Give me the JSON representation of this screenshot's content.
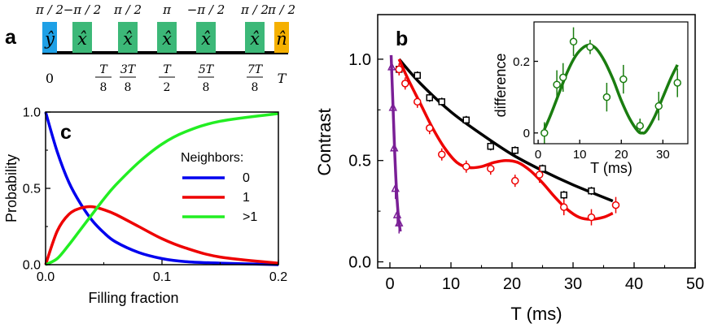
{
  "colors": {
    "pulse_y": "#1ea0e6",
    "pulse_x": "#3cb878",
    "pulse_n": "#f5b000",
    "blue": "#0000ee",
    "red": "#ee0000",
    "green": "#22ee22",
    "black": "#000000",
    "purple": "#7a1f96",
    "darkgreen": "#1a7d10"
  },
  "panel_a": {
    "letter": "a",
    "pulses": [
      {
        "phase": "π / 2",
        "axis": "ŷ",
        "kind": "y"
      },
      {
        "phase": "−π / 2",
        "axis": "x̂",
        "kind": "x"
      },
      {
        "phase": "π / 2",
        "axis": "x̂",
        "kind": "x"
      },
      {
        "phase": "π",
        "axis": "x̂",
        "kind": "x"
      },
      {
        "phase": "−π / 2",
        "axis": "x̂",
        "kind": "x"
      },
      {
        "phase": "π / 2",
        "axis": "x̂",
        "kind": "x"
      },
      {
        "phase": "π / 2",
        "axis": "n̂",
        "kind": "n"
      }
    ],
    "time_labels": [
      {
        "num": "0",
        "den": ""
      },
      {
        "num": "T",
        "den": "8"
      },
      {
        "num": "3T",
        "den": "8"
      },
      {
        "num": "T",
        "den": "2"
      },
      {
        "num": "5T",
        "den": "8"
      },
      {
        "num": "7T",
        "den": "8"
      },
      {
        "num": "T",
        "den": ""
      }
    ]
  },
  "chart_data": [
    {
      "id": "c",
      "letter": "c",
      "type": "line",
      "xlabel": "Filling fraction",
      "ylabel": "Probability",
      "xlim": [
        0,
        0.2
      ],
      "ylim": [
        0,
        1.0
      ],
      "xticks": [
        "0.0",
        "0.1",
        "0.2"
      ],
      "yticks": [
        "0.0",
        "0.5",
        "1.0"
      ],
      "legend_title": "Neighbors:",
      "legend_position": "right",
      "series": [
        {
          "name": "0",
          "color_key": "blue",
          "x": [
            0,
            0.01,
            0.02,
            0.03,
            0.04,
            0.05,
            0.06,
            0.08,
            0.1,
            0.12,
            0.15,
            0.2
          ],
          "values": [
            1.0,
            0.74,
            0.54,
            0.4,
            0.29,
            0.21,
            0.15,
            0.08,
            0.04,
            0.02,
            0.01,
            0.0
          ]
        },
        {
          "name": "1",
          "color_key": "red",
          "x": [
            0,
            0.01,
            0.02,
            0.03,
            0.04,
            0.05,
            0.06,
            0.08,
            0.1,
            0.12,
            0.15,
            0.2
          ],
          "values": [
            0.0,
            0.22,
            0.33,
            0.37,
            0.38,
            0.36,
            0.33,
            0.25,
            0.17,
            0.11,
            0.05,
            0.01
          ]
        },
        {
          "name": ">1",
          "color_key": "green",
          "x": [
            0,
            0.01,
            0.02,
            0.03,
            0.04,
            0.05,
            0.06,
            0.08,
            0.1,
            0.12,
            0.15,
            0.2
          ],
          "values": [
            0.0,
            0.04,
            0.13,
            0.23,
            0.33,
            0.43,
            0.52,
            0.67,
            0.79,
            0.87,
            0.94,
            0.99
          ]
        }
      ]
    },
    {
      "id": "b",
      "letter": "b",
      "type": "scatter",
      "xlabel": "T (ms)",
      "ylabel": "Contrast",
      "xlim": [
        -2,
        50
      ],
      "ylim": [
        -0.03,
        1.22
      ],
      "xticks": [
        "0",
        "10",
        "20",
        "30",
        "40",
        "50"
      ],
      "yticks": [
        "0.0",
        "0.5",
        "1.0"
      ],
      "series": [
        {
          "name": "black squares",
          "color_key": "black",
          "marker": "square",
          "x": [
            1.5,
            4.5,
            6.5,
            8.5,
            12.5,
            16.5,
            20.5,
            25,
            28.5,
            33
          ],
          "values": [
            0.95,
            0.92,
            0.81,
            0.79,
            0.7,
            0.57,
            0.55,
            0.46,
            0.33,
            0.35
          ],
          "errors": [
            0.02,
            0.02,
            0.02,
            0.02,
            0.02,
            0.02,
            0.02,
            0.02,
            0.02,
            0.02
          ],
          "fit_x": [
            1.5,
            5,
            10,
            15,
            20,
            25,
            30,
            36.5
          ],
          "fit_y": [
            1.0,
            0.88,
            0.74,
            0.63,
            0.53,
            0.45,
            0.38,
            0.3
          ]
        },
        {
          "name": "red circles",
          "color_key": "red",
          "marker": "circle",
          "x": [
            1.5,
            2.5,
            4.5,
            6.5,
            8.5,
            12.5,
            16.5,
            20.5,
            24.5,
            28.5,
            33,
            37
          ],
          "values": [
            0.95,
            0.88,
            0.79,
            0.66,
            0.53,
            0.47,
            0.46,
            0.4,
            0.43,
            0.27,
            0.22,
            0.28
          ],
          "errors": [
            0.03,
            0.03,
            0.03,
            0.03,
            0.03,
            0.03,
            0.03,
            0.03,
            0.04,
            0.04,
            0.04,
            0.04
          ],
          "fit_x": [
            1.5,
            3,
            5,
            7,
            9,
            11,
            13,
            15,
            17,
            19,
            21,
            23,
            25,
            27,
            29,
            31,
            33,
            35,
            36.5
          ],
          "fit_y": [
            1.0,
            0.9,
            0.78,
            0.66,
            0.56,
            0.49,
            0.465,
            0.47,
            0.49,
            0.5,
            0.49,
            0.45,
            0.39,
            0.32,
            0.26,
            0.22,
            0.21,
            0.22,
            0.24
          ]
        },
        {
          "name": "purple triangles",
          "color_key": "purple",
          "marker": "triangle",
          "x": [
            0.3,
            0.5,
            0.7,
            0.9,
            1.2,
            1.5
          ],
          "values": [
            0.96,
            0.76,
            0.56,
            0.36,
            0.23,
            0.19
          ],
          "errors": [
            0.05,
            0.05,
            0.05,
            0.05,
            0.05,
            0.05
          ],
          "fit_x": [
            0.2,
            0.5,
            0.8,
            1.1,
            1.4,
            1.7
          ],
          "fit_y": [
            1.02,
            0.77,
            0.53,
            0.34,
            0.22,
            0.15
          ]
        }
      ]
    },
    {
      "id": "inset",
      "type": "scatter",
      "xlabel": "T (ms)",
      "ylabel": "difference",
      "xlim": [
        -1,
        36
      ],
      "ylim": [
        -0.03,
        0.31
      ],
      "xticks": [
        "0",
        "10",
        "20",
        "30"
      ],
      "yticks": [
        "0",
        "0.2"
      ],
      "series": [
        {
          "name": "difference",
          "color_key": "darkgreen",
          "marker": "circle",
          "x": [
            1.5,
            4.5,
            6,
            8.5,
            12.5,
            16.5,
            20.5,
            24.5,
            29,
            33.5
          ],
          "values": [
            0.0,
            0.135,
            0.155,
            0.255,
            0.24,
            0.1,
            0.15,
            0.02,
            0.075,
            0.14
          ],
          "errors": [
            0.03,
            0.04,
            0.04,
            0.04,
            0.02,
            0.04,
            0.04,
            0.02,
            0.04,
            0.04
          ],
          "fit_x": [
            1.5,
            3,
            5,
            7,
            9,
            11,
            12.5,
            14,
            16,
            18,
            20,
            22,
            24,
            25,
            26,
            28,
            30,
            32,
            33.5
          ],
          "fit_y": [
            0.01,
            0.05,
            0.11,
            0.17,
            0.215,
            0.24,
            0.245,
            0.235,
            0.2,
            0.15,
            0.09,
            0.04,
            0.005,
            0.0,
            0.005,
            0.045,
            0.1,
            0.155,
            0.19
          ]
        }
      ]
    }
  ]
}
